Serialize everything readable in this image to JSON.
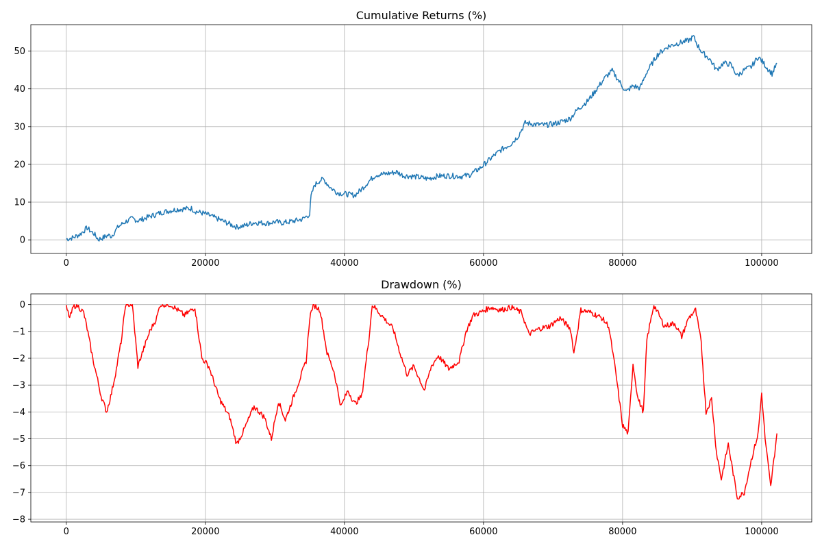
{
  "chart_data": [
    {
      "type": "line",
      "title": "Cumulative Returns (%)",
      "xlabel": "",
      "ylabel": "",
      "xlim": [
        -5100,
        107200
      ],
      "ylim": [
        -3.6,
        57.0
      ],
      "xticks": [
        0,
        20000,
        40000,
        60000,
        80000,
        100000
      ],
      "xtick_labels": [
        "0",
        "20000",
        "40000",
        "60000",
        "80000",
        "100000"
      ],
      "yticks": [
        0,
        10,
        20,
        30,
        40,
        50
      ],
      "ytick_labels": [
        "0",
        "10",
        "20",
        "30",
        "40",
        "50"
      ],
      "grid": true,
      "legend": "none",
      "series": [
        {
          "color": "#1f77b4",
          "x": [
            0,
            1000,
            2000,
            3000,
            3500,
            4000,
            4600,
            5200,
            6000,
            6500,
            7500,
            8500,
            9500,
            10300,
            10800,
            12000,
            14000,
            16000,
            18000,
            18500,
            20000,
            22000,
            24500,
            25500,
            27000,
            29000,
            30000,
            31000,
            32500,
            34000,
            35000,
            35200,
            35700,
            36500,
            37000,
            38000,
            39000,
            40000,
            41500,
            42500,
            43500,
            44500,
            46000,
            47500,
            48500,
            50000,
            52000,
            53500,
            55000,
            57000,
            58000,
            59500,
            61000,
            62500,
            64000,
            65000,
            66000,
            67500,
            69000,
            70500,
            72000,
            72500,
            73500,
            75000,
            76500,
            77500,
            78500,
            79500,
            80500,
            81500,
            82500,
            83500,
            85000,
            86500,
            88000,
            89500,
            90200,
            90800,
            91500,
            92500,
            93500,
            94500,
            95500,
            96500,
            97500,
            98500,
            99500,
            100200,
            100800,
            101500,
            102200
          ],
          "y": [
            0.2,
            0.6,
            1.5,
            3.2,
            2.3,
            1.6,
            0.1,
            0.5,
            1.2,
            1.0,
            3.5,
            4.8,
            5.6,
            5.1,
            5.4,
            6.2,
            7.4,
            8.1,
            8.3,
            7.6,
            6.9,
            5.4,
            3.4,
            3.7,
            4.6,
            4.4,
            4.8,
            4.5,
            4.9,
            5.5,
            6.8,
            11.5,
            14.5,
            15.8,
            16.0,
            13.8,
            12.5,
            12.2,
            11.8,
            13.5,
            15.5,
            17.2,
            17.5,
            18.0,
            17.0,
            16.8,
            16.2,
            16.9,
            17.0,
            16.8,
            17.2,
            19.0,
            21.5,
            23.8,
            25.5,
            27.5,
            31.0,
            30.6,
            30.4,
            30.9,
            31.8,
            32.2,
            34.5,
            36.8,
            40.5,
            43.0,
            44.8,
            42.0,
            39.2,
            40.8,
            40.2,
            44.5,
            49.0,
            51.2,
            52.1,
            52.8,
            53.8,
            51.5,
            49.5,
            48.0,
            45.0,
            46.8,
            46.5,
            43.5,
            45.0,
            45.8,
            48.5,
            47.0,
            45.5,
            44.0,
            46.8
          ]
        }
      ]
    },
    {
      "type": "line",
      "title": "Drawdown (%)",
      "xlabel": "",
      "ylabel": "",
      "xlim": [
        -5100,
        107200
      ],
      "ylim": [
        -8.1,
        0.4
      ],
      "xticks": [
        0,
        20000,
        40000,
        60000,
        80000,
        100000
      ],
      "xtick_labels": [
        "0",
        "20000",
        "40000",
        "60000",
        "80000",
        "100000"
      ],
      "yticks": [
        -8,
        -7,
        -6,
        -5,
        -4,
        -3,
        -2,
        -1,
        0
      ],
      "ytick_labels": [
        "−8",
        "−7",
        "−6",
        "−5",
        "−4",
        "−3",
        "−2",
        "−1",
        "0"
      ],
      "grid": true,
      "legend": "none",
      "series": [
        {
          "color": "#ff0000",
          "x": [
            0,
            500,
            1000,
            1500,
            2500,
            3000,
            3800,
            4500,
            5000,
            5800,
            6500,
            7200,
            8000,
            8500,
            9500,
            10300,
            10800,
            12000,
            13000,
            13500,
            15000,
            17000,
            18500,
            19500,
            20500,
            22000,
            23500,
            24500,
            25500,
            27000,
            28500,
            29500,
            30500,
            31500,
            33000,
            34500,
            35000,
            35500,
            36500,
            37500,
            38500,
            39500,
            40500,
            41500,
            42500,
            43500,
            44000,
            45000,
            47000,
            48000,
            49000,
            50000,
            51500,
            52500,
            53500,
            55000,
            56500,
            57500,
            58500,
            59500,
            61000,
            62500,
            64000,
            65500,
            66500,
            68000,
            69500,
            71000,
            72500,
            73000,
            74000,
            75500,
            77000,
            78000,
            79000,
            80000,
            80800,
            81500,
            82200,
            83000,
            83500,
            84500,
            86000,
            87500,
            88500,
            89500,
            90500,
            91300,
            92000,
            92800,
            93500,
            94200,
            95200,
            96500,
            97500,
            98500,
            99500,
            100000,
            100500,
            101300,
            102200
          ],
          "y": [
            -0.1,
            -0.5,
            -0.1,
            0.0,
            -0.3,
            -0.9,
            -2.0,
            -2.8,
            -3.4,
            -4.0,
            -3.3,
            -2.4,
            -1.2,
            0.0,
            0.0,
            -2.3,
            -1.9,
            -1.0,
            -0.5,
            0.0,
            0.0,
            -0.4,
            -0.1,
            -2.0,
            -2.3,
            -3.5,
            -4.2,
            -5.2,
            -4.7,
            -3.8,
            -4.2,
            -5.0,
            -3.6,
            -4.3,
            -3.2,
            -2.1,
            -0.5,
            0.0,
            -0.2,
            -1.8,
            -2.5,
            -3.8,
            -3.2,
            -3.7,
            -3.4,
            -1.3,
            0.0,
            -0.3,
            -0.9,
            -1.8,
            -2.6,
            -2.3,
            -3.2,
            -2.3,
            -1.9,
            -2.4,
            -2.1,
            -1.0,
            -0.4,
            -0.3,
            -0.1,
            -0.2,
            -0.1,
            -0.3,
            -1.1,
            -0.9,
            -0.8,
            -0.5,
            -0.9,
            -1.8,
            -0.2,
            -0.3,
            -0.5,
            -0.8,
            -2.5,
            -4.5,
            -4.8,
            -2.2,
            -3.5,
            -4.0,
            -1.3,
            0.0,
            -0.8,
            -0.7,
            -1.2,
            -0.5,
            -0.2,
            -1.4,
            -4.0,
            -3.5,
            -5.5,
            -6.5,
            -5.2,
            -7.2,
            -7.0,
            -5.8,
            -4.8,
            -3.3,
            -5.0,
            -6.8,
            -4.8
          ]
        }
      ]
    }
  ]
}
